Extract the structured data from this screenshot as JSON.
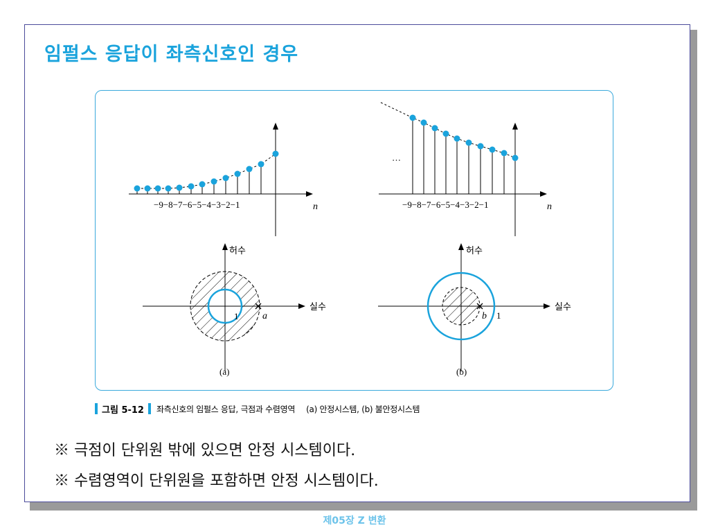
{
  "slide": {
    "title": "임펄스 응답이 좌측신호인 경우",
    "footer": "제05장 Z 변환"
  },
  "figure": {
    "tick_labels_a": "−9−8−7−6−5−4−3−2−1",
    "tick_labels_b": "−9−8−7−6−5−4−3−2−1",
    "n_label_a": "n",
    "n_label_b": "n",
    "ellipsis": "…",
    "imag_label": "허수",
    "real_label": "실수",
    "unit_label_a": "1",
    "pole_label_a": "a",
    "unit_label_b": "1",
    "pole_label_b": "b",
    "panel_label_a": "(a)",
    "panel_label_b": "(b)",
    "accent_color": "#1aa3dc"
  },
  "caption": {
    "label": "그림 5-12",
    "text": "좌측신호의 임펄스 응답, 극점과 수렴영역",
    "sub": "(a) 안정시스템,  (b) 불안정시스템"
  },
  "notes": [
    "※ 극점이 단위원 밖에 있으면 안정 시스템이다.",
    "※ 수렴영역이 단위원을 포함하면 안정 시스템이다."
  ]
}
